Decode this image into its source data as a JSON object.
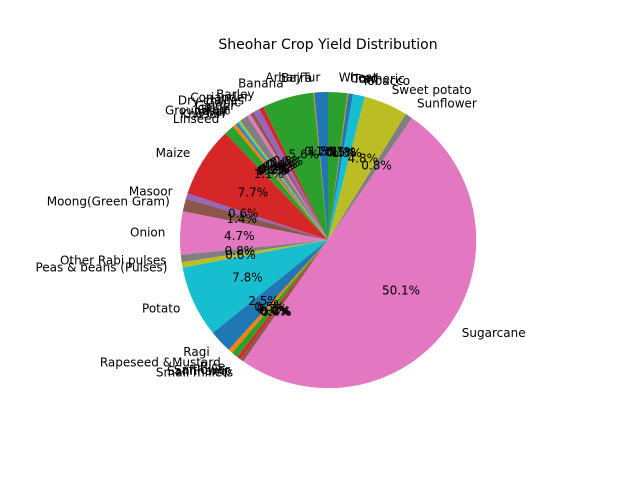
{
  "chart_data": {
    "type": "pie",
    "title": "Sheohar Crop Yield Distribution",
    "start_angle": 90,
    "counterclock": true,
    "autopct_format": "%1.1f%%",
    "categories": [
      "Arhar/Tur",
      "Bajra",
      "Banana",
      "Barley",
      "Coriander",
      "Dry chillies",
      "Garlic",
      "Ginger",
      "Gram",
      "Groundnut",
      "Jowar",
      "Khesari",
      "Linseed",
      "Maize",
      "Masoor",
      "Moong(Green Gram)",
      "Onion",
      "Other Rabi pulses",
      "Peas & beans (Pulses)",
      "Potato",
      "Ragi",
      "Rapeseed &Mustard",
      "Rice",
      "Safflower",
      "Sannhamp",
      "Small millets",
      "Sugarcane",
      "Sunflower",
      "Sweet potato",
      "Tobacco",
      "Turmeric",
      "Urad",
      "Wheat"
    ],
    "values": [
      1.5,
      0.1,
      5.6,
      0.5,
      0.7,
      0.4,
      0.4,
      0.9,
      0.2,
      0.2,
      0.2,
      0.4,
      1.1,
      7.7,
      0.6,
      1.4,
      4.7,
      0.8,
      0.6,
      7.8,
      2.5,
      0.5,
      0.7,
      0.4,
      0.0,
      0.4,
      50.1,
      0.8,
      4.8,
      1.3,
      0.5,
      0.1,
      2.1
    ],
    "pct_labels": [
      "1.5%",
      "0.1%",
      "5.6%",
      "0.5%",
      "0.7%",
      "0.4%",
      "0.4%",
      "0.9%",
      "0.2%",
      "0.2%",
      "0.2%",
      "0.4%",
      "1.1%",
      "7.7%",
      "0.6%",
      "1.4%",
      "4.7%",
      "0.8%",
      "0.6%",
      "7.8%",
      "2.5%",
      "0.5%",
      "0.7%",
      "0.4%",
      "0.0%",
      "0.4%",
      "50.1%",
      "0.8%",
      "4.8%",
      "1.3%",
      "0.5%",
      "0.1%",
      "2.1%"
    ],
    "colors": [
      "#1f77b4",
      "#ff7f0e",
      "#2ca02c",
      "#d62728",
      "#9467bd",
      "#8c564b",
      "#e377c2",
      "#7f7f7f",
      "#bcbd22",
      "#17becf"
    ]
  }
}
